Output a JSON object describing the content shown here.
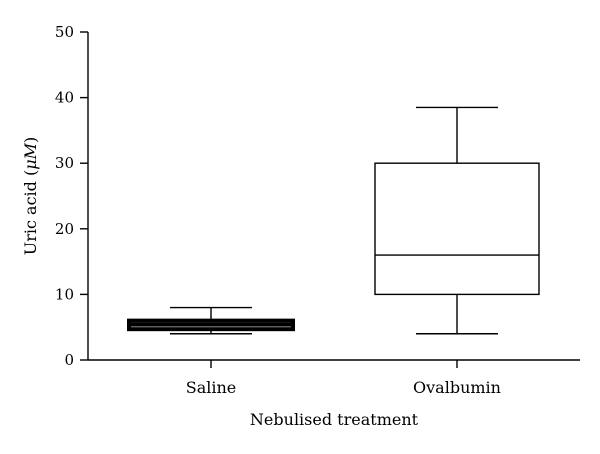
{
  "chart_data": {
    "type": "box",
    "title": "",
    "xlabel": "Nebulised treatment",
    "ylabel_prefix": "Uric acid (",
    "ylabel_unit": "μM",
    "ylabel_suffix": ")",
    "ylim": [
      0,
      50
    ],
    "yticks": [
      0,
      10,
      20,
      30,
      40,
      50
    ],
    "grid": false,
    "legend": "none",
    "categories": [
      "Saline",
      "Ovalbumin"
    ],
    "boxes": [
      {
        "category": "Saline",
        "min": 4,
        "q1": 4.7,
        "median": 5.4,
        "q3": 6,
        "max": 8
      },
      {
        "category": "Ovalbumin",
        "min": 4,
        "q1": 10,
        "median": 16,
        "q3": 30,
        "max": 38.5
      }
    ]
  }
}
